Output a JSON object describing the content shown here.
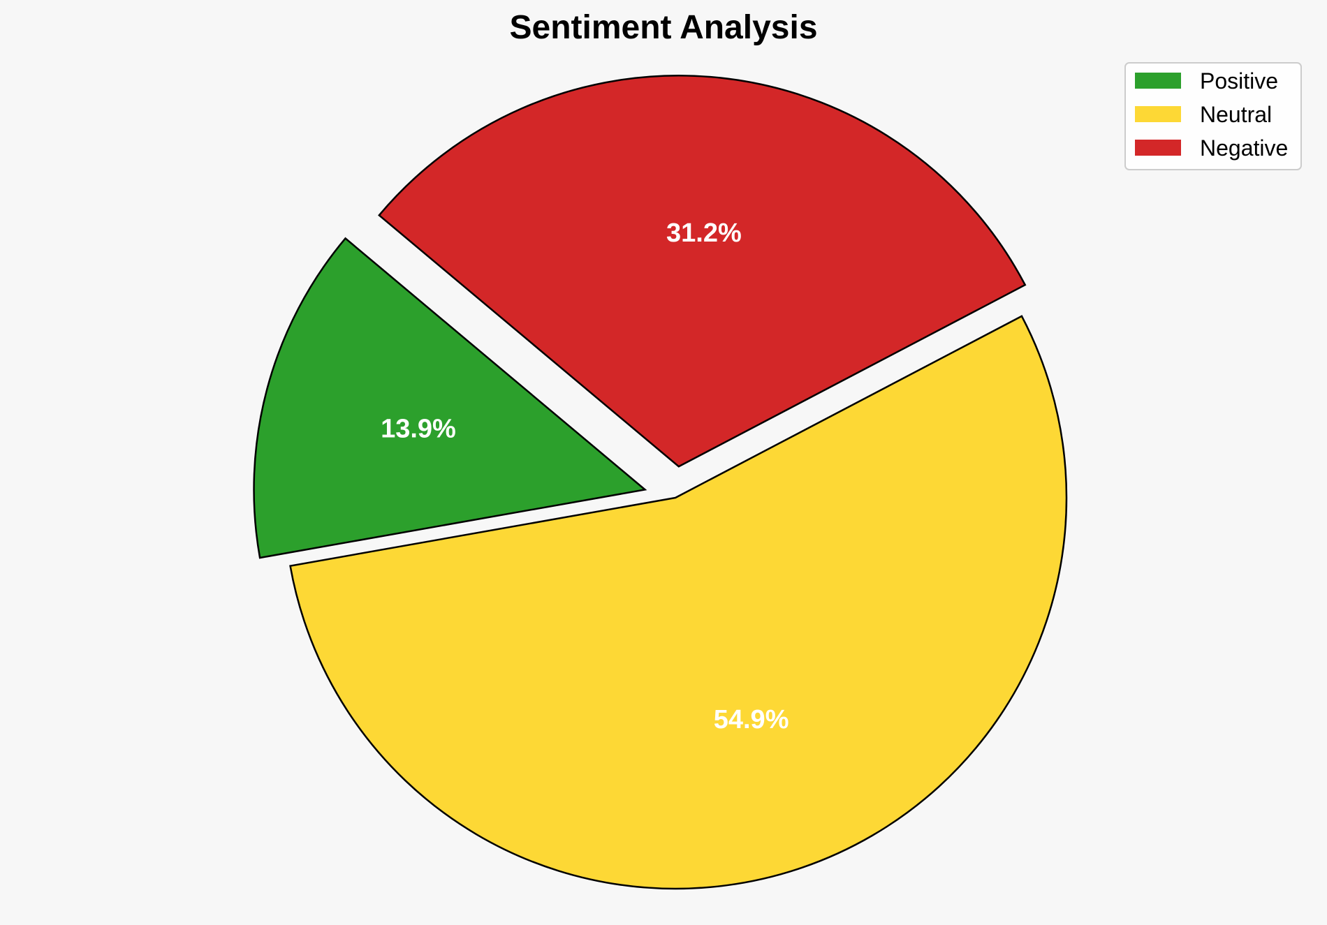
{
  "chart_data": {
    "type": "pie",
    "title": "Sentiment Analysis",
    "categories": [
      "Positive",
      "Neutral",
      "Negative"
    ],
    "values": [
      13.9,
      54.9,
      31.2
    ],
    "value_labels": [
      "13.9%",
      "54.9%",
      "31.2%"
    ],
    "colors": [
      "#2ca02c",
      "#fdd835",
      "#d32728"
    ],
    "exploded": [
      true,
      false,
      true
    ],
    "legend_position": "top-right",
    "slice_edge_color": "#000000"
  }
}
